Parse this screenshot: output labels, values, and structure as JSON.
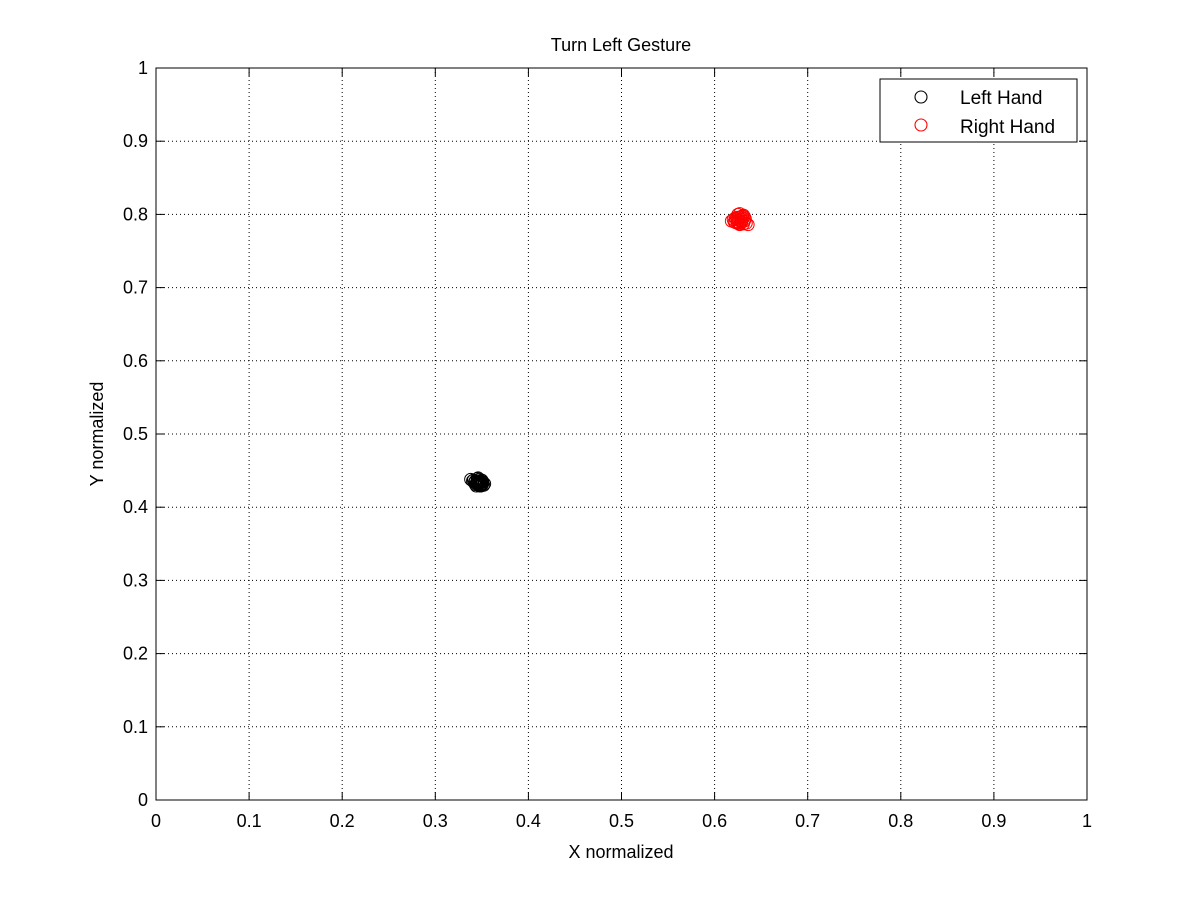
{
  "chart_data": {
    "type": "scatter",
    "title": "Turn Left Gesture",
    "xlabel": "X normalized",
    "ylabel": "Y normalized",
    "xlim": [
      0,
      1
    ],
    "ylim": [
      0,
      1
    ],
    "xticks": [
      0,
      0.1,
      0.2,
      0.3,
      0.4,
      0.5,
      0.6,
      0.7,
      0.8,
      0.9,
      1
    ],
    "yticks": [
      0,
      0.1,
      0.2,
      0.3,
      0.4,
      0.5,
      0.6,
      0.7,
      0.8,
      0.9,
      1
    ],
    "xtick_labels": [
      "0",
      "0.1",
      "0.2",
      "0.3",
      "0.4",
      "0.5",
      "0.6",
      "0.7",
      "0.8",
      "0.9",
      "1"
    ],
    "ytick_labels": [
      "0",
      "0.1",
      "0.2",
      "0.3",
      "0.4",
      "0.5",
      "0.6",
      "0.7",
      "0.8",
      "0.9",
      "1"
    ],
    "grid": true,
    "legend_position": "top-right",
    "marker": "open-circle",
    "series": [
      {
        "name": "Left Hand",
        "color": "#000000",
        "x": [
          0.338,
          0.341,
          0.343,
          0.345,
          0.346,
          0.347,
          0.348,
          0.349,
          0.35,
          0.351,
          0.352,
          0.344,
          0.346,
          0.348,
          0.35,
          0.342,
          0.347,
          0.349,
          0.345,
          0.351,
          0.34,
          0.353,
          0.346,
          0.348,
          0.344,
          0.35,
          0.347,
          0.343,
          0.349,
          0.345
        ],
        "y": [
          0.438,
          0.437,
          0.436,
          0.439,
          0.435,
          0.438,
          0.433,
          0.436,
          0.434,
          0.432,
          0.43,
          0.432,
          0.431,
          0.429,
          0.431,
          0.434,
          0.436,
          0.433,
          0.433,
          0.435,
          0.436,
          0.432,
          0.44,
          0.43,
          0.429,
          0.437,
          0.434,
          0.431,
          0.429,
          0.436
        ]
      },
      {
        "name": "Right Hand",
        "color": "#ff0000",
        "x": [
          0.618,
          0.62,
          0.622,
          0.624,
          0.625,
          0.626,
          0.627,
          0.628,
          0.629,
          0.63,
          0.631,
          0.632,
          0.634,
          0.636,
          0.623,
          0.625,
          0.627,
          0.629,
          0.631,
          0.626,
          0.628,
          0.624,
          0.63,
          0.621,
          0.633,
          0.627,
          0.625,
          0.629,
          0.632,
          0.622
        ],
        "y": [
          0.791,
          0.793,
          0.789,
          0.796,
          0.8,
          0.792,
          0.787,
          0.797,
          0.79,
          0.795,
          0.799,
          0.791,
          0.788,
          0.786,
          0.794,
          0.789,
          0.801,
          0.793,
          0.787,
          0.796,
          0.791,
          0.788,
          0.798,
          0.79,
          0.794,
          0.786,
          0.792,
          0.789,
          0.797,
          0.795
        ]
      }
    ]
  }
}
